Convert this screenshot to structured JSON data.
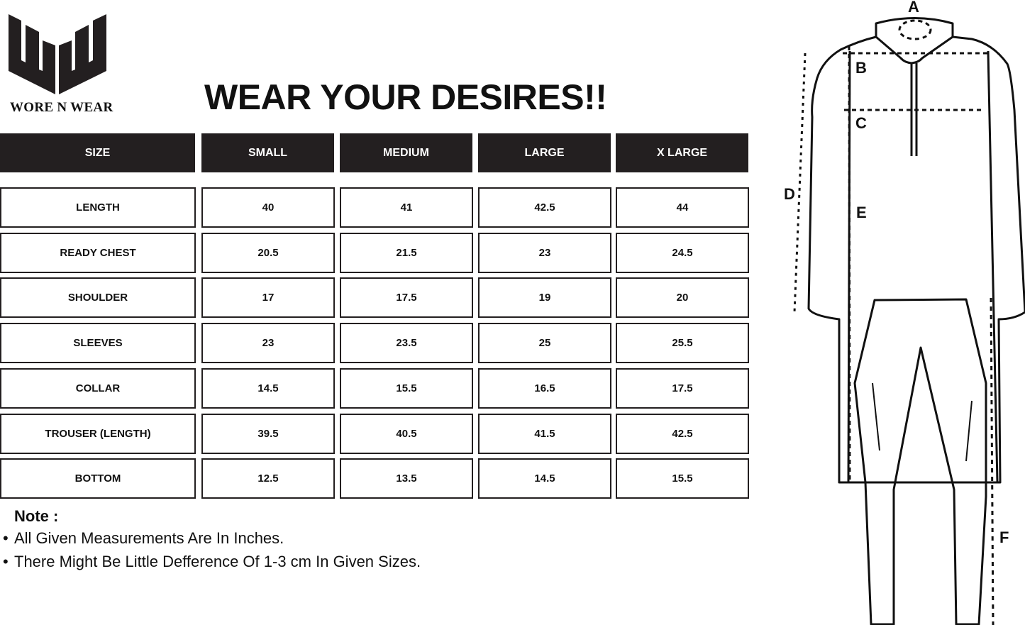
{
  "brand": {
    "name": "WORE N WEAR",
    "logo_letters": "WW"
  },
  "title": "WEAR YOUR DESIRES!!",
  "table": {
    "headers": [
      "SIZE",
      "SMALL",
      "MEDIUM",
      "LARGE",
      "X LARGE"
    ],
    "rows": [
      [
        "LENGTH",
        "40",
        "41",
        "42.5",
        "44"
      ],
      [
        "READY CHEST",
        "20.5",
        "21.5",
        "23",
        "24.5"
      ],
      [
        "SHOULDER",
        "17",
        "17.5",
        "19",
        "20"
      ],
      [
        "SLEEVES",
        "23",
        "23.5",
        "25",
        "25.5"
      ],
      [
        "COLLAR",
        "14.5",
        "15.5",
        "16.5",
        "17.5"
      ],
      [
        "TROUSER (LENGTH)",
        "39.5",
        "40.5",
        "41.5",
        "42.5"
      ],
      [
        "BOTTOM",
        "12.5",
        "13.5",
        "14.5",
        "15.5"
      ]
    ]
  },
  "notes": {
    "title": "Note :",
    "items": [
      "All Given Measurements Are In Inches.",
      "There Might Be Little Defference Of 1-3 cm In Given Sizes."
    ]
  },
  "diagram": {
    "labels": [
      "A",
      "B",
      "C",
      "D",
      "E",
      "F"
    ]
  },
  "colors": {
    "header_bg": "#231f20",
    "header_text": "#ffffff",
    "border": "#231f20"
  }
}
